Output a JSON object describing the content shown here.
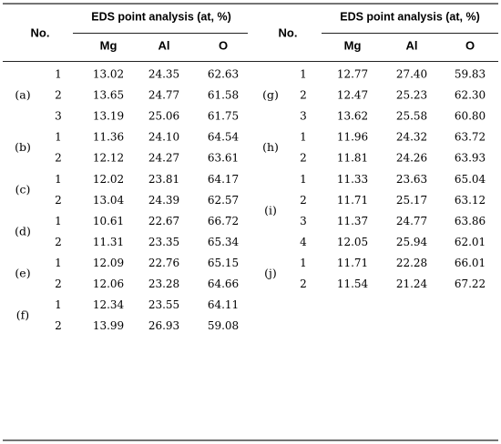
{
  "table": {
    "header": {
      "no_label": "No.",
      "analysis_label": "EDS point analysis (at, %)",
      "columns": [
        "Mg",
        "Al",
        "O"
      ]
    },
    "left_groups": [
      {
        "label": "(a)",
        "rows": [
          {
            "n": "1",
            "mg": "13.02",
            "al": "24.35",
            "o": "62.63"
          },
          {
            "n": "2",
            "mg": "13.65",
            "al": "24.77",
            "o": "61.58"
          },
          {
            "n": "3",
            "mg": "13.19",
            "al": "25.06",
            "o": "61.75"
          }
        ]
      },
      {
        "label": "(b)",
        "rows": [
          {
            "n": "1",
            "mg": "11.36",
            "al": "24.10",
            "o": "64.54"
          },
          {
            "n": "2",
            "mg": "12.12",
            "al": "24.27",
            "o": "63.61"
          }
        ]
      },
      {
        "label": "(c)",
        "rows": [
          {
            "n": "1",
            "mg": "12.02",
            "al": "23.81",
            "o": "64.17"
          },
          {
            "n": "2",
            "mg": "13.04",
            "al": "24.39",
            "o": "62.57"
          }
        ]
      },
      {
        "label": "(d)",
        "rows": [
          {
            "n": "1",
            "mg": "10.61",
            "al": "22.67",
            "o": "66.72"
          },
          {
            "n": "2",
            "mg": "11.31",
            "al": "23.35",
            "o": "65.34"
          }
        ]
      },
      {
        "label": "(e)",
        "rows": [
          {
            "n": "1",
            "mg": "12.09",
            "al": "22.76",
            "o": "65.15"
          },
          {
            "n": "2",
            "mg": "12.06",
            "al": "23.28",
            "o": "64.66"
          }
        ]
      },
      {
        "label": "(f)",
        "rows": [
          {
            "n": "1",
            "mg": "12.34",
            "al": "23.55",
            "o": "64.11"
          },
          {
            "n": "2",
            "mg": "13.99",
            "al": "26.93",
            "o": "59.08"
          }
        ]
      }
    ],
    "right_groups": [
      {
        "label": "(g)",
        "rows": [
          {
            "n": "1",
            "mg": "12.77",
            "al": "27.40",
            "o": "59.83"
          },
          {
            "n": "2",
            "mg": "12.47",
            "al": "25.23",
            "o": "62.30"
          },
          {
            "n": "3",
            "mg": "13.62",
            "al": "25.58",
            "o": "60.80"
          }
        ]
      },
      {
        "label": "(h)",
        "rows": [
          {
            "n": "1",
            "mg": "11.96",
            "al": "24.32",
            "o": "63.72"
          },
          {
            "n": "2",
            "mg": "11.81",
            "al": "24.26",
            "o": "63.93"
          }
        ]
      },
      {
        "label": "(i)",
        "rows": [
          {
            "n": "1",
            "mg": "11.33",
            "al": "23.63",
            "o": "65.04"
          },
          {
            "n": "2",
            "mg": "11.71",
            "al": "25.17",
            "o": "63.12"
          },
          {
            "n": "3",
            "mg": "11.37",
            "al": "24.77",
            "o": "63.86"
          },
          {
            "n": "4",
            "mg": "12.05",
            "al": "25.94",
            "o": "62.01"
          }
        ]
      },
      {
        "label": "(j)",
        "rows": [
          {
            "n": "1",
            "mg": "11.71",
            "al": "22.28",
            "o": "66.01"
          },
          {
            "n": "2",
            "mg": "11.54",
            "al": "21.24",
            "o": "67.22"
          }
        ]
      }
    ]
  }
}
